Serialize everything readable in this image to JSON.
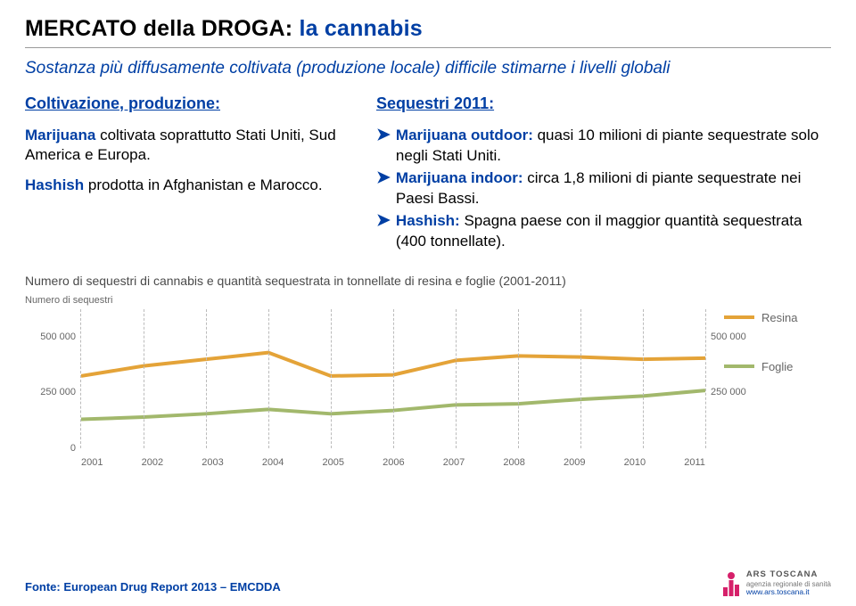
{
  "title_parts": {
    "a": "MERCATO della DROGA: ",
    "b": "la cannabis"
  },
  "subtitle": "Sostanza più diffusamente coltivata (produzione locale) difficile stimarne i livelli globali",
  "left": {
    "heading": "Coltivazione, produzione:",
    "p1_a": "Marijuana",
    "p1_b": " coltivata soprattutto Stati Uniti, Sud America e Europa.",
    "p2_a": "Hashish",
    "p2_b": " prodotta in Afghanistan e Marocco."
  },
  "right": {
    "heading": "Sequestri 2011:",
    "bullets": [
      {
        "lead": "Marijuana outdoor:",
        "rest": " quasi 10 milioni di piante sequestrate solo negli Stati Uniti."
      },
      {
        "lead": "Marijuana indoor:",
        "rest": " circa 1,8 milioni di piante sequestrate nei Paesi Bassi."
      },
      {
        "lead": "Hashish:",
        "rest": " Spagna paese con il maggior quantità sequestrata (400 tonnellate)."
      }
    ]
  },
  "chart": {
    "title": "Numero di sequestri di cannabis e quantità sequestrata in tonnellate di resina e foglie (2001-2011)",
    "y_axis_left_label": "Numero di sequestri",
    "ylim": [
      0,
      625000
    ],
    "yticks": [
      0,
      250000,
      500000
    ],
    "ytick_labels": [
      "0",
      "250 000",
      "500 000"
    ],
    "ytick_labels_right": [
      "",
      "250 000",
      "500 000"
    ],
    "years": [
      "2001",
      "2002",
      "2003",
      "2004",
      "2005",
      "2006",
      "2007",
      "2008",
      "2009",
      "2010",
      "2011"
    ],
    "series": [
      {
        "name": "Resina",
        "color": "#e4a338",
        "width": 4,
        "values": [
          325000,
          370000,
          400000,
          430000,
          325000,
          330000,
          395000,
          415000,
          410000,
          400000,
          405000
        ]
      },
      {
        "name": "Foglie",
        "color": "#a2b86c",
        "width": 4,
        "values": [
          130000,
          140000,
          155000,
          175000,
          155000,
          170000,
          195000,
          200000,
          220000,
          235000,
          260000
        ]
      }
    ],
    "grid_color": "#bbbbbb",
    "background_color": "#ffffff"
  },
  "source": "Fonte: European Drug Report 2013 – EMCDDA",
  "logo": {
    "name": "ARS TOSCANA",
    "line1": "agenzia regionale di sanità",
    "url": "www.ars.toscana.it",
    "color": "#d6206a"
  },
  "colors": {
    "blue": "#003fa4"
  }
}
